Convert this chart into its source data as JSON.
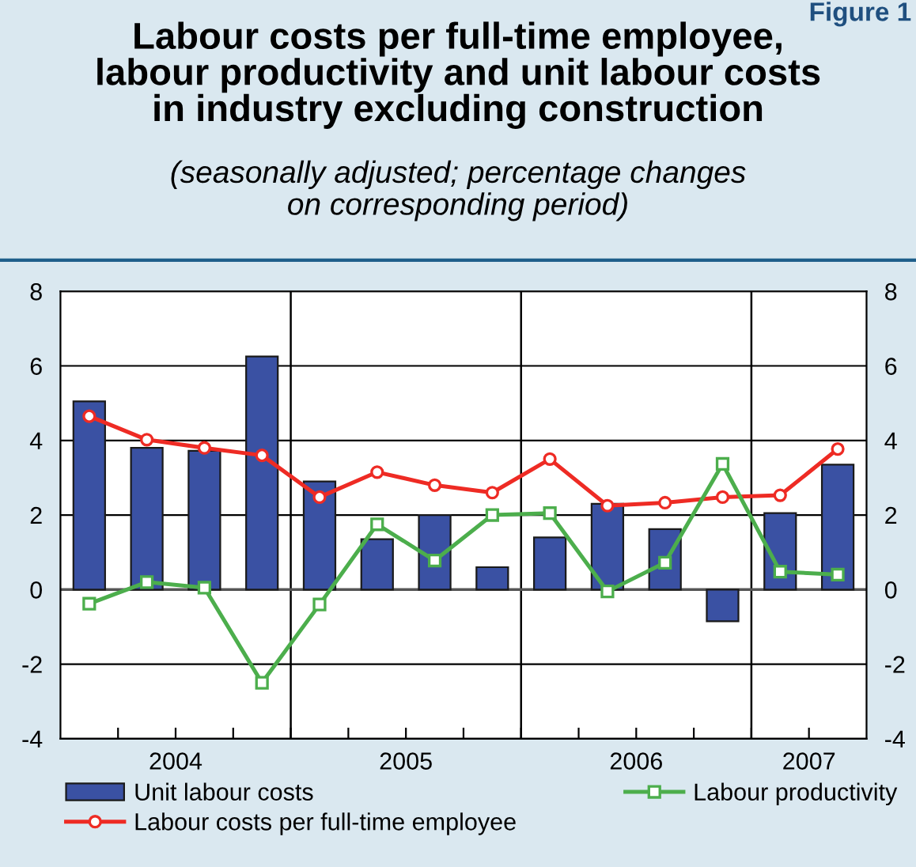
{
  "chart_data": {
    "type": "bar",
    "title": "Labour costs per full-time employee,\nlabour productivity and unit labour costs\nin industry excluding construction",
    "subtitle": "(seasonally adjusted; percentage changes\non corresponding period)",
    "annotations": [
      "Figure 1"
    ],
    "x": [
      2004.125,
      2004.375,
      2004.625,
      2004.875,
      2005.125,
      2005.375,
      2005.625,
      2005.875,
      2006.125,
      2006.375,
      2006.625,
      2006.875,
      2007.125,
      2007.375
    ],
    "xlim": [
      2004,
      2007.5
    ],
    "xticks": [
      {
        "value": 2004.25,
        "label": null
      },
      {
        "value": 2004.5,
        "label": "2004"
      },
      {
        "value": 2004.75,
        "label": null
      },
      {
        "value": 2005,
        "label": null
      },
      {
        "value": 2005.25,
        "label": null
      },
      {
        "value": 2005.5,
        "label": "2005"
      },
      {
        "value": 2005.75,
        "label": null
      },
      {
        "value": 2006,
        "label": null
      },
      {
        "value": 2006.25,
        "label": null
      },
      {
        "value": 2006.5,
        "label": "2006"
      },
      {
        "value": 2006.75,
        "label": null
      },
      {
        "value": 2007,
        "label": null
      },
      {
        "value": 2007.25,
        "label": "2007"
      }
    ],
    "ylim": [
      -4,
      8
    ],
    "yticks": [
      -4,
      -2,
      0,
      2,
      4,
      6,
      8
    ],
    "y2lim": [
      -4,
      8
    ],
    "y2ticks": [
      -4,
      -2,
      0,
      2,
      4,
      6,
      8
    ],
    "grid": "y",
    "legend": "bottom",
    "ref_lines": [
      {
        "axis": "x",
        "value": 2005,
        "color": "#000000"
      },
      {
        "axis": "x",
        "value": 2006,
        "color": "#000000"
      },
      {
        "axis": "x",
        "value": 2007,
        "color": "#000000"
      }
    ],
    "series": [
      {
        "name": "Unit labour costs",
        "color": "#3a51a3",
        "values": [
          5.05,
          3.8,
          3.72,
          6.25,
          2.9,
          1.35,
          2.0,
          0.6,
          1.4,
          2.3,
          1.62,
          -0.85,
          2.05,
          3.35
        ]
      },
      {
        "name": "Labour costs per full-time employee",
        "type": "line",
        "color": "#ee2b24",
        "marker": "circle",
        "values": [
          4.65,
          4.02,
          3.8,
          3.6,
          2.48,
          3.15,
          2.8,
          2.6,
          3.5,
          2.25,
          2.33,
          2.48,
          2.53,
          3.77
        ]
      },
      {
        "name": "Labour productivity",
        "type": "line",
        "color": "#4cae4c",
        "marker": "square",
        "values": [
          -0.38,
          0.2,
          0.05,
          -2.5,
          -0.4,
          1.75,
          0.78,
          2.0,
          2.05,
          -0.05,
          0.72,
          3.37,
          0.48,
          0.4
        ]
      }
    ]
  }
}
